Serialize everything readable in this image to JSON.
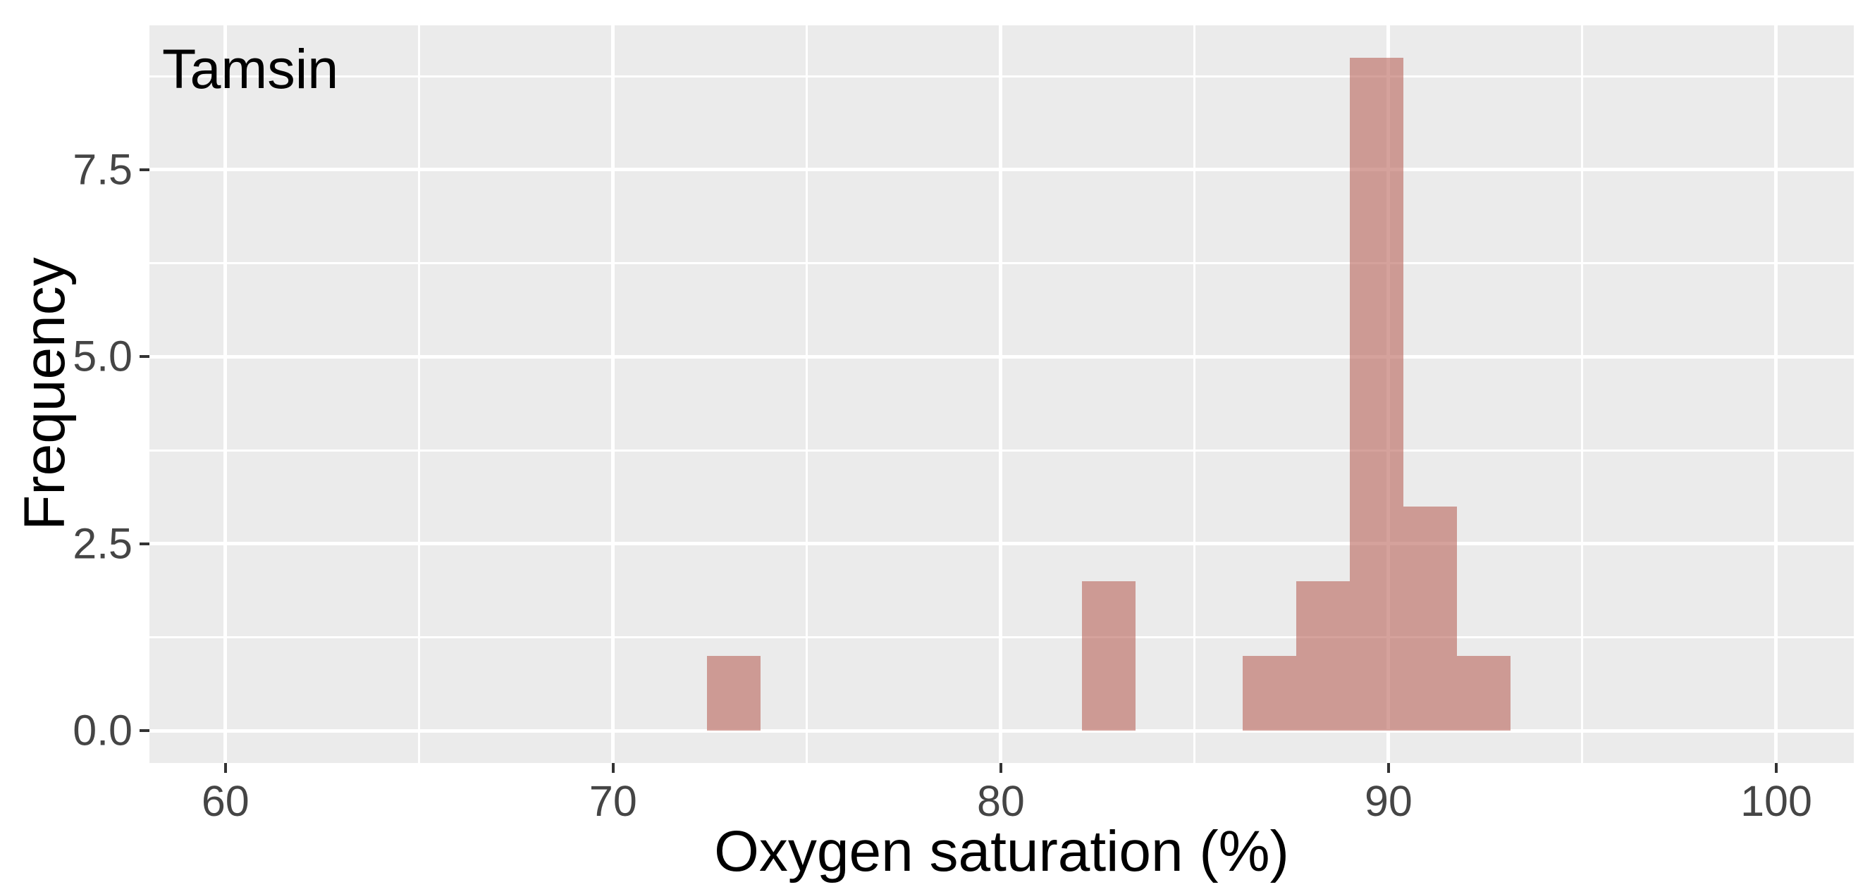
{
  "chart_data": {
    "type": "histogram",
    "annotation": "Tamsin",
    "xlabel": "Oxygen saturation (%)",
    "ylabel": "Frequency",
    "xlim": [
      58.04,
      102.0
    ],
    "ylim": [
      -0.43,
      9.43
    ],
    "x_ticks": [
      {
        "value": 60,
        "label": "60"
      },
      {
        "value": 70,
        "label": "70"
      },
      {
        "value": 80,
        "label": "80"
      },
      {
        "value": 90,
        "label": "90"
      },
      {
        "value": 100,
        "label": "100"
      }
    ],
    "x_minor_gridlines": [
      65,
      75,
      85,
      95
    ],
    "y_ticks": [
      {
        "value": 0,
        "label": "0.0"
      },
      {
        "value": 2.5,
        "label": "2.5"
      },
      {
        "value": 5,
        "label": "5.0"
      },
      {
        "value": 7.5,
        "label": "7.5"
      }
    ],
    "y_minor_gridlines": [
      1.25,
      3.75,
      6.25,
      8.75
    ],
    "bins": [
      {
        "x0": 72.42,
        "x1": 73.8,
        "count": 1
      },
      {
        "x0": 82.09,
        "x1": 83.47,
        "count": 2
      },
      {
        "x0": 86.24,
        "x1": 87.62,
        "count": 1
      },
      {
        "x0": 87.62,
        "x1": 89.0,
        "count": 2
      },
      {
        "x0": 89.0,
        "x1": 90.38,
        "count": 9
      },
      {
        "x0": 90.38,
        "x1": 91.76,
        "count": 3
      },
      {
        "x0": 91.76,
        "x1": 93.15,
        "count": 1
      }
    ],
    "total_observations": 19,
    "grid": "on",
    "legend": "none",
    "colors": {
      "figure_bg": "#FFFFFF",
      "panel_bg": "#EBEBEB",
      "gridline": "#FFFFFF",
      "bar_fill": "#B75F55",
      "bar_alpha": 0.58,
      "bar_blended_on_panel": "#CE9B95",
      "tick_label": "#454545",
      "tick_mark": "#333333",
      "axis_title": "#000000",
      "annotation_text": "#000000"
    }
  }
}
